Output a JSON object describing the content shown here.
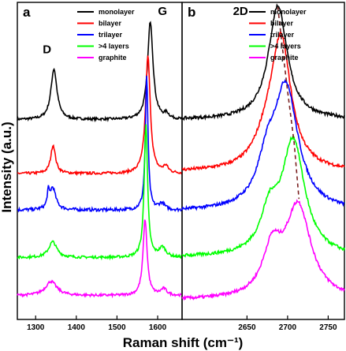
{
  "chart_data": {
    "type": "line",
    "ylabel": "Intensity (a.u.)",
    "xlabel": "Raman shift (cm⁻¹)",
    "y_ticks_shown": false,
    "panels": [
      {
        "id": "a",
        "xlim": [
          1255,
          1660
        ],
        "xticks": [
          1300,
          1400,
          1500,
          1600
        ],
        "peak_labels": [
          {
            "text": "D",
            "x": 1328,
            "level": 0.84
          },
          {
            "text": "G",
            "x": 1612,
            "level": 0.96
          }
        ],
        "legend": [
          "monolayer",
          "bilayer",
          "trilayer",
          ">4 layers",
          "graphite"
        ],
        "series": [
          {
            "name": "monolayer",
            "color": "#000000",
            "baseline": 0.63,
            "noise": 0.004,
            "peaks": [
              [
                1345,
                0.16,
                9
              ],
              [
                1582,
                0.31,
                8
              ],
              [
                1622,
                0.015,
                7
              ]
            ]
          },
          {
            "name": "bilayer",
            "color": "#ff0000",
            "baseline": 0.46,
            "noise": 0.004,
            "peaks": [
              [
                1343,
                0.09,
                7
              ],
              [
                1576,
                0.37,
                7
              ],
              [
                1620,
                0.02,
                7
              ]
            ]
          },
          {
            "name": "trilayer",
            "color": "#0000ff",
            "baseline": 0.345,
            "noise": 0.005,
            "peaks": [
              [
                1331,
                0.045,
                3
              ],
              [
                1342,
                0.07,
                9
              ],
              [
                1573,
                0.42,
                4
              ],
              [
                1610,
                0.02,
                9
              ]
            ]
          },
          {
            "name": ">4 layers",
            "color": "#00ff00",
            "baseline": 0.195,
            "noise": 0.004,
            "peaks": [
              [
                1342,
                0.05,
                12
              ],
              [
                1571,
                0.42,
                5
              ],
              [
                1612,
                0.03,
                10
              ]
            ]
          },
          {
            "name": "graphite",
            "color": "#ff00ff",
            "baseline": 0.075,
            "noise": 0.004,
            "peaks": [
              [
                1338,
                0.045,
                17
              ],
              [
                1569,
                0.24,
                6
              ],
              [
                1615,
                0.02,
                9
              ]
            ]
          }
        ]
      },
      {
        "id": "b",
        "xlim": [
          2570,
          2770
        ],
        "xticks": [
          2650,
          2700,
          2750
        ],
        "peak_labels": [
          {
            "text": "2D",
            "x": 2642,
            "level": 0.96
          }
        ],
        "legend": [
          "monolayer",
          "bilayer",
          "trilayer",
          ">4 layers",
          "graphite"
        ],
        "dashed_line": [
          [
            2688,
            0.985
          ],
          [
            2693,
            0.87
          ],
          [
            2700,
            0.72
          ],
          [
            2708,
            0.56
          ],
          [
            2714,
            0.38
          ]
        ],
        "series": [
          {
            "name": "monolayer",
            "color": "#000000",
            "baseline": 0.63,
            "noise": 0.005,
            "peaks": [
              [
                2688,
                0.36,
                14
              ]
            ]
          },
          {
            "name": "bilayer",
            "color": "#ff0000",
            "baseline": 0.465,
            "noise": 0.005,
            "peaks": [
              [
                2692,
                0.4,
                15
              ],
              [
                2674,
                0.07,
                18
              ]
            ]
          },
          {
            "name": "trilayer",
            "color": "#0000ff",
            "baseline": 0.34,
            "noise": 0.005,
            "peaks": [
              [
                2698,
                0.38,
                18
              ],
              [
                2675,
                0.12,
                14
              ]
            ]
          },
          {
            "name": ">4 layers",
            "color": "#00ff00",
            "baseline": 0.195,
            "noise": 0.005,
            "peaks": [
              [
                2707,
                0.36,
                17
              ],
              [
                2678,
                0.12,
                13
              ]
            ]
          },
          {
            "name": "graphite",
            "color": "#ff00ff",
            "baseline": 0.06,
            "noise": 0.005,
            "peaks": [
              [
                2713,
                0.29,
                19
              ],
              [
                2681,
                0.14,
                14
              ]
            ]
          }
        ]
      }
    ]
  }
}
